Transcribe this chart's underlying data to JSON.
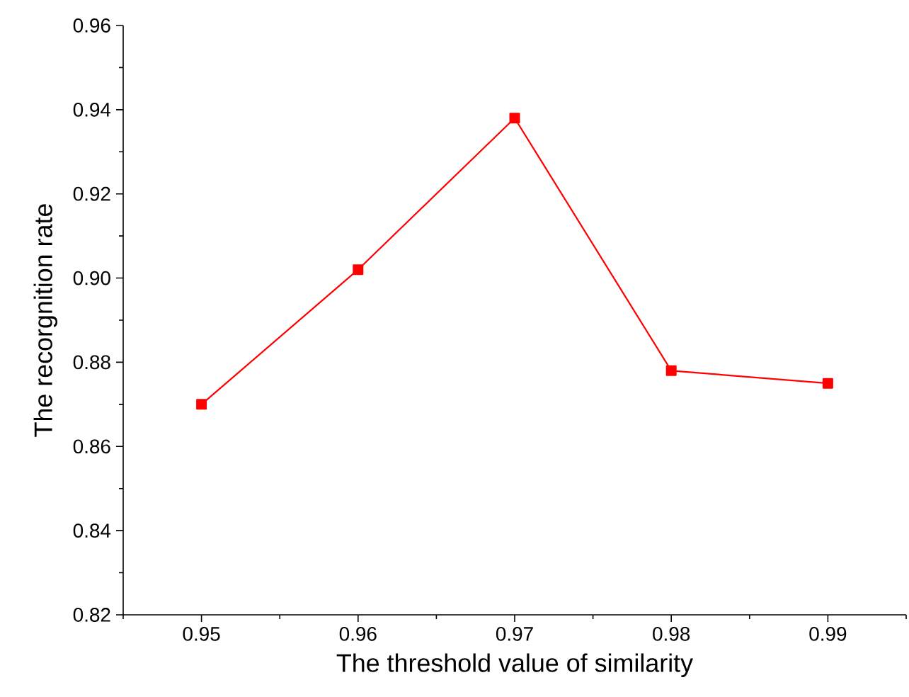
{
  "chart_data": {
    "type": "line",
    "xlabel": "The threshold value of similarity",
    "ylabel": "The recorgnition rate",
    "x": [
      0.95,
      0.96,
      0.97,
      0.98,
      0.99
    ],
    "series": [
      {
        "color": "#ff0000",
        "values": [
          0.87,
          0.902,
          0.938,
          0.878,
          0.875
        ]
      }
    ],
    "xlim": [
      0.945,
      0.995
    ],
    "xticks": [
      0.95,
      0.96,
      0.97,
      0.98,
      0.99
    ],
    "ylim": [
      0.82,
      0.96
    ],
    "yticks": [
      0.82,
      0.84,
      0.86,
      0.88,
      {
        "value": 0.9,
        "label": "0.90"
      },
      0.92,
      0.94,
      0.96
    ],
    "marker": "square",
    "line_style": "solid"
  }
}
